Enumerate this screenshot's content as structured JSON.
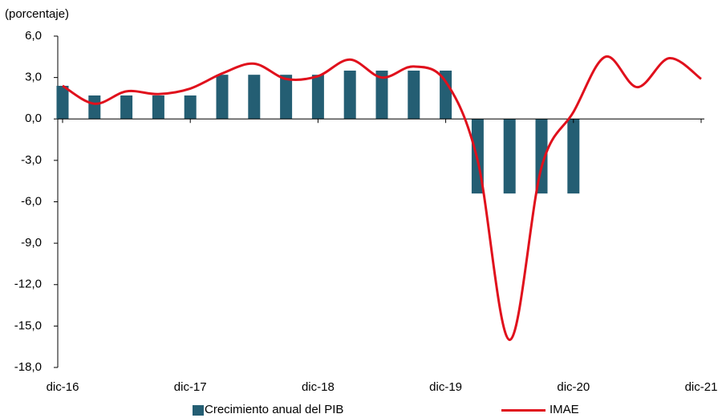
{
  "chart_data": {
    "type": "bar+line",
    "subtitle": "(porcentaje)",
    "categories": [
      "dic-16",
      null,
      null,
      null,
      "dic-17",
      null,
      null,
      null,
      "dic-18",
      null,
      null,
      null,
      "dic-19",
      null,
      null,
      null,
      "dic-20",
      null,
      null,
      null,
      "dic-21"
    ],
    "series": [
      {
        "name": "Crecimiento anual del PIB",
        "type": "bar",
        "color": "#245e73",
        "values": [
          2.4,
          1.7,
          1.7,
          1.7,
          1.7,
          3.2,
          3.2,
          3.2,
          3.2,
          3.5,
          3.5,
          3.5,
          3.5,
          -5.4,
          -5.4,
          -5.4,
          -5.4,
          null,
          null,
          null,
          null
        ]
      },
      {
        "name": "IMAE",
        "type": "line",
        "color": "#e0101c",
        "values": [
          2.4,
          1.1,
          2.0,
          1.8,
          2.2,
          3.3,
          4.0,
          2.9,
          3.1,
          4.3,
          3.0,
          3.8,
          2.7,
          -3.0,
          -16.0,
          -3.5,
          0.5,
          4.5,
          2.3,
          4.4,
          2.9
        ]
      }
    ],
    "ylim": [
      -18,
      6
    ],
    "yticks": [
      {
        "value": -18,
        "label": "-18,0"
      },
      {
        "value": -15,
        "label": "-15,0"
      },
      {
        "value": -12,
        "label": "-12,0"
      },
      {
        "value": -9,
        "label": "-9,0"
      },
      {
        "value": -6,
        "label": "-6,0"
      },
      {
        "value": -3,
        "label": "-3,0"
      },
      {
        "value": 0,
        "label": "0,0"
      },
      {
        "value": 3,
        "label": "3,0"
      },
      {
        "value": 6,
        "label": "6,0"
      }
    ]
  }
}
